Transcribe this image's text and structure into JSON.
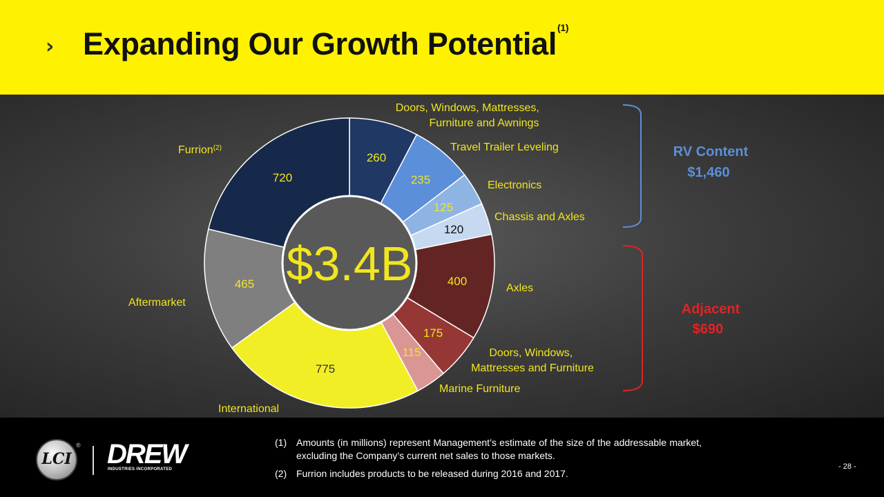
{
  "header": {
    "chevron": "›",
    "title": "Expanding Our Growth Potential",
    "title_sup": "(1)"
  },
  "chart_data": {
    "type": "pie",
    "style": "donut",
    "center_label": "$3.4B",
    "slices": [
      {
        "label": "Doors, Windows, Mattresses, Furniture and Awnings",
        "value": 260,
        "color": "#1F3864",
        "value_color": "#F2E61E",
        "label_color": "#F2E61E"
      },
      {
        "label": "Travel Trailer Leveling",
        "value": 235,
        "color": "#5B8FD9",
        "value_color": "#F2E61E",
        "label_color": "#F2E61E"
      },
      {
        "label": "Electronics",
        "value": 125,
        "color": "#8EB4E3",
        "value_color": "#F2E61E",
        "label_color": "#F2E61E"
      },
      {
        "label": "Chassis and Axles",
        "value": 120,
        "color": "#C6D9F1",
        "value_color": "#111111",
        "label_color": "#F2E61E"
      },
      {
        "label": "Axles",
        "value": 400,
        "color": "#632523",
        "value_color": "#F2E61E",
        "label_color": "#F2E61E"
      },
      {
        "label": "Doors, Windows, Mattresses and Furniture",
        "value": 175,
        "color": "#953735",
        "value_color": "#F2E61E",
        "label_color": "#F2E61E"
      },
      {
        "label": "Marine Furniture",
        "value": 115,
        "color": "#D99694",
        "value_color": "#F2E61E",
        "label_color": "#F2E61E"
      },
      {
        "label": "International",
        "value": 775,
        "color": "#F2EE25",
        "value_color": "#333333",
        "label_color": "#F2E61E"
      },
      {
        "label": "Aftermarket",
        "value": 465,
        "color": "#7F7F7F",
        "value_color": "#F2E61E",
        "label_color": "#F2E61E"
      },
      {
        "label": "Furrion",
        "label_sup": "(2)",
        "value": 720,
        "color": "#17294A",
        "value_color": "#F2E61E",
        "label_color": "#F2E61E"
      }
    ],
    "groups": [
      {
        "name": "RV Content",
        "total": "$1,460",
        "color": "#5B8FD9"
      },
      {
        "name": "Adjacent",
        "total": "$690",
        "color": "#E32222"
      }
    ]
  },
  "footnotes": [
    {
      "num": "(1)",
      "text": "Amounts (in millions) represent Management’s estimate of the size of the addressable market, excluding the Company’s current net sales to those markets."
    },
    {
      "num": "(2)",
      "text": "Furrion includes products to be released during 2016 and 2017."
    }
  ],
  "logos": {
    "lci": "LCI",
    "registered": "®",
    "drew": "DREW",
    "drew_sub": "INDUSTRIES INCORPORATED"
  },
  "page_number": "- 28 -"
}
